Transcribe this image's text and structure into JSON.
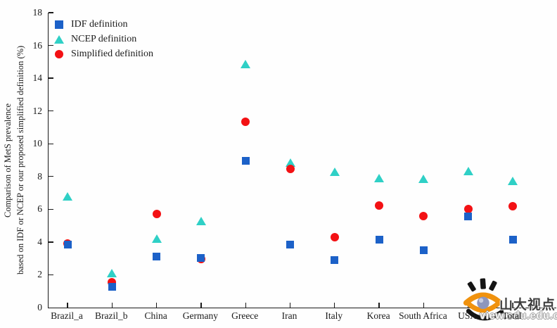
{
  "chart_data": {
    "type": "scatter",
    "title": "",
    "xlabel": "",
    "ylabel_line1": "Comparison of MetS prevalence",
    "ylabel_line2": "based on IDF or NCEP or our proposed simplified definition (%)",
    "ylim": [
      0,
      18
    ],
    "ytick_step": 2,
    "yticks": [
      0,
      2,
      4,
      6,
      8,
      10,
      12,
      14,
      16,
      18
    ],
    "grid": false,
    "legend_position": "top-left",
    "categories": [
      "Brazil_a",
      "Brazil_b",
      "China",
      "Germany",
      "Greece",
      "Iran",
      "Italy",
      "Korea",
      "South Africa",
      "USA",
      "Total"
    ],
    "series": [
      {
        "name": "IDF definition",
        "marker": "square",
        "color": "#1c61c8",
        "values": [
          3.85,
          1.25,
          3.1,
          3.05,
          8.95,
          3.85,
          2.9,
          4.15,
          3.5,
          5.55,
          4.15
        ]
      },
      {
        "name": "NCEP definition",
        "marker": "triangle",
        "color": "#2fd0c6",
        "values": [
          6.8,
          2.1,
          4.2,
          5.3,
          14.85,
          8.85,
          8.3,
          7.9,
          7.85,
          8.35,
          7.75
        ]
      },
      {
        "name": "Simplified definition",
        "marker": "circle",
        "color": "#f31114",
        "values": [
          3.9,
          1.55,
          5.7,
          2.95,
          11.35,
          8.45,
          4.3,
          6.25,
          5.6,
          6.0,
          6.2
        ]
      }
    ]
  },
  "colors": {
    "axis": "#1a1a1a",
    "watermark_orange": "#f0920e",
    "watermark_black": "#141414",
    "watermark_pupil": "#8d96bd"
  },
  "watermark": {
    "cn_text": "山大视点",
    "url_text": "view.sdu.edu.cn"
  }
}
